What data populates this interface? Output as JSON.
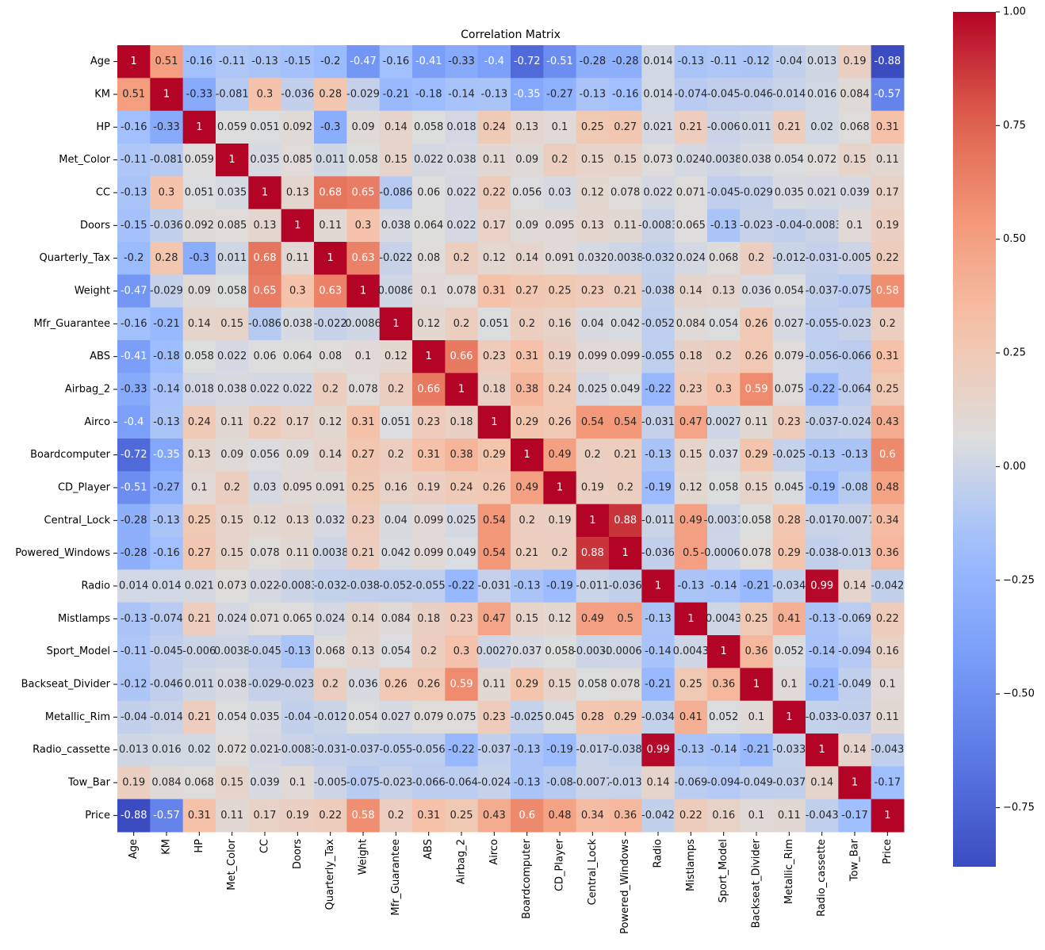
{
  "chart_data": {
    "type": "heatmap",
    "title": "Correlation Matrix",
    "colormap": "coolwarm",
    "categories": [
      "Age",
      "KM",
      "HP",
      "Met_Color",
      "CC",
      "Doors",
      "Quarterly_Tax",
      "Weight",
      "Mfr_Guarantee",
      "ABS",
      "Airbag_2",
      "Airco",
      "Boardcomputer",
      "CD_Player",
      "Central_Lock",
      "Powered_Windows",
      "Radio",
      "Mistlamps",
      "Sport_Model",
      "Backseat_Divider",
      "Metallic_Rim",
      "Radio_cassette",
      "Tow_Bar",
      "Price"
    ],
    "values": [
      [
        1,
        0.51,
        -0.16,
        -0.11,
        -0.13,
        -0.15,
        -0.2,
        -0.47,
        -0.16,
        -0.41,
        -0.33,
        -0.4,
        -0.72,
        -0.51,
        -0.28,
        -0.28,
        0.014,
        -0.13,
        -0.11,
        -0.12,
        -0.04,
        0.013,
        0.19,
        -0.88
      ],
      [
        0.51,
        1,
        -0.33,
        -0.081,
        0.3,
        -0.036,
        0.28,
        -0.029,
        -0.21,
        -0.18,
        -0.14,
        -0.13,
        -0.35,
        -0.27,
        -0.13,
        -0.16,
        0.014,
        -0.074,
        -0.045,
        -0.046,
        -0.014,
        0.016,
        0.084,
        -0.57
      ],
      [
        -0.16,
        -0.33,
        1,
        0.059,
        0.051,
        0.092,
        -0.3,
        0.09,
        0.14,
        0.058,
        0.018,
        0.24,
        0.13,
        0.1,
        0.25,
        0.27,
        0.021,
        0.21,
        -0.006,
        0.011,
        0.21,
        0.02,
        0.068,
        0.31
      ],
      [
        -0.11,
        -0.081,
        0.059,
        1,
        0.035,
        0.085,
        0.011,
        0.058,
        0.15,
        0.022,
        0.038,
        0.11,
        0.09,
        0.2,
        0.15,
        0.15,
        0.073,
        0.024,
        0.0038,
        0.038,
        0.054,
        0.072,
        0.15,
        0.11
      ],
      [
        -0.13,
        0.3,
        0.051,
        0.035,
        1,
        0.13,
        0.68,
        0.65,
        -0.086,
        0.06,
        0.022,
        0.22,
        0.056,
        0.03,
        0.12,
        0.078,
        0.022,
        0.071,
        -0.045,
        -0.029,
        0.035,
        0.021,
        0.039,
        0.17
      ],
      [
        -0.15,
        -0.036,
        0.092,
        0.085,
        0.13,
        1,
        0.11,
        0.3,
        0.038,
        0.064,
        0.022,
        0.17,
        0.09,
        0.095,
        0.13,
        0.11,
        -0.0083,
        0.065,
        -0.13,
        -0.023,
        -0.04,
        -0.0083,
        0.1,
        0.19
      ],
      [
        -0.2,
        0.28,
        -0.3,
        0.011,
        0.68,
        0.11,
        1,
        0.63,
        -0.022,
        0.08,
        0.2,
        0.12,
        0.14,
        0.091,
        0.032,
        0.0038,
        -0.032,
        0.024,
        0.068,
        0.2,
        -0.012,
        -0.031,
        -0.005,
        0.22
      ],
      [
        -0.47,
        -0.029,
        0.09,
        0.058,
        0.65,
        0.3,
        0.63,
        1,
        0.0086,
        0.1,
        0.078,
        0.31,
        0.27,
        0.25,
        0.23,
        0.21,
        -0.038,
        0.14,
        0.13,
        0.036,
        0.054,
        -0.037,
        -0.075,
        0.58
      ],
      [
        -0.16,
        -0.21,
        0.14,
        0.15,
        -0.086,
        0.038,
        -0.022,
        0.0086,
        1,
        0.12,
        0.2,
        0.051,
        0.2,
        0.16,
        0.04,
        0.042,
        -0.052,
        0.084,
        0.054,
        0.26,
        0.027,
        -0.055,
        -0.023,
        0.2
      ],
      [
        -0.41,
        -0.18,
        0.058,
        0.022,
        0.06,
        0.064,
        0.08,
        0.1,
        0.12,
        1,
        0.66,
        0.23,
        0.31,
        0.19,
        0.099,
        0.099,
        -0.055,
        0.18,
        0.2,
        0.26,
        0.079,
        -0.056,
        -0.066,
        0.31
      ],
      [
        -0.33,
        -0.14,
        0.018,
        0.038,
        0.022,
        0.022,
        0.2,
        0.078,
        0.2,
        0.66,
        1,
        0.18,
        0.38,
        0.24,
        0.025,
        0.049,
        -0.22,
        0.23,
        0.3,
        0.59,
        0.075,
        -0.22,
        -0.064,
        0.25
      ],
      [
        -0.4,
        -0.13,
        0.24,
        0.11,
        0.22,
        0.17,
        0.12,
        0.31,
        0.051,
        0.23,
        0.18,
        1,
        0.29,
        0.26,
        0.54,
        0.54,
        -0.031,
        0.47,
        0.0027,
        0.11,
        0.23,
        -0.037,
        -0.024,
        0.43
      ],
      [
        -0.72,
        -0.35,
        0.13,
        0.09,
        0.056,
        0.09,
        0.14,
        0.27,
        0.2,
        0.31,
        0.38,
        0.29,
        1,
        0.49,
        0.2,
        0.21,
        -0.13,
        0.15,
        0.037,
        0.29,
        -0.025,
        -0.13,
        -0.13,
        0.6
      ],
      [
        -0.51,
        -0.27,
        0.1,
        0.2,
        0.03,
        0.095,
        0.091,
        0.25,
        0.16,
        0.19,
        0.24,
        0.26,
        0.49,
        1,
        0.19,
        0.2,
        -0.19,
        0.12,
        0.058,
        0.15,
        0.045,
        -0.19,
        -0.08,
        0.48
      ],
      [
        -0.28,
        -0.13,
        0.25,
        0.15,
        0.12,
        0.13,
        0.032,
        0.23,
        0.04,
        0.099,
        0.025,
        0.54,
        0.2,
        0.19,
        1,
        0.88,
        -0.011,
        0.49,
        -0.0031,
        0.058,
        0.28,
        -0.017,
        -0.0077,
        0.34
      ],
      [
        -0.28,
        -0.16,
        0.27,
        0.15,
        0.078,
        0.11,
        0.0038,
        0.21,
        0.042,
        0.099,
        0.049,
        0.54,
        0.21,
        0.2,
        0.88,
        1,
        -0.036,
        0.5,
        -0.00065,
        0.078,
        0.29,
        -0.038,
        -0.013,
        0.36
      ],
      [
        0.014,
        0.014,
        0.021,
        0.073,
        0.022,
        -0.0083,
        -0.032,
        -0.038,
        -0.052,
        -0.055,
        -0.22,
        -0.031,
        -0.13,
        -0.19,
        -0.011,
        -0.036,
        1,
        -0.13,
        -0.14,
        -0.21,
        -0.034,
        0.99,
        0.14,
        -0.042
      ],
      [
        -0.13,
        -0.074,
        0.21,
        0.024,
        0.071,
        0.065,
        0.024,
        0.14,
        0.084,
        0.18,
        0.23,
        0.47,
        0.15,
        0.12,
        0.49,
        0.5,
        -0.13,
        1,
        0.0043,
        0.25,
        0.41,
        -0.13,
        -0.069,
        0.22
      ],
      [
        -0.11,
        -0.045,
        -0.006,
        0.0038,
        -0.045,
        -0.13,
        0.068,
        0.13,
        0.054,
        0.2,
        0.3,
        0.0027,
        0.037,
        0.058,
        -0.0031,
        -0.00065,
        -0.14,
        0.0043,
        1,
        0.36,
        0.052,
        -0.14,
        -0.094,
        0.16
      ],
      [
        -0.12,
        -0.046,
        0.011,
        0.038,
        -0.029,
        -0.023,
        0.2,
        0.036,
        0.26,
        0.26,
        0.59,
        0.11,
        0.29,
        0.15,
        0.058,
        0.078,
        -0.21,
        0.25,
        0.36,
        1,
        0.1,
        -0.21,
        -0.049,
        0.1
      ],
      [
        -0.04,
        -0.014,
        0.21,
        0.054,
        0.035,
        -0.04,
        -0.012,
        0.054,
        0.027,
        0.079,
        0.075,
        0.23,
        -0.025,
        0.045,
        0.28,
        0.29,
        -0.034,
        0.41,
        0.052,
        0.1,
        1,
        -0.033,
        -0.037,
        0.11
      ],
      [
        0.013,
        0.016,
        0.02,
        0.072,
        0.021,
        -0.0083,
        -0.031,
        -0.037,
        -0.055,
        -0.056,
        -0.22,
        -0.037,
        -0.13,
        -0.19,
        -0.017,
        -0.038,
        0.99,
        -0.13,
        -0.14,
        -0.21,
        -0.033,
        1,
        0.14,
        -0.043
      ],
      [
        0.19,
        0.084,
        0.068,
        0.15,
        0.039,
        0.1,
        -0.005,
        -0.075,
        -0.023,
        -0.066,
        -0.064,
        -0.024,
        -0.13,
        -0.08,
        -0.0077,
        -0.013,
        0.14,
        -0.069,
        -0.094,
        -0.049,
        -0.037,
        0.14,
        1,
        -0.17
      ],
      [
        -0.88,
        -0.57,
        0.31,
        0.11,
        0.17,
        0.19,
        0.22,
        0.58,
        0.2,
        0.31,
        0.25,
        0.43,
        0.6,
        0.48,
        0.34,
        0.36,
        -0.042,
        0.22,
        0.16,
        0.1,
        0.11,
        -0.043,
        -0.17,
        1
      ]
    ],
    "zlim": [
      -0.88,
      1
    ],
    "zticks": [
      {
        "value": -0.75,
        "label": "−0.75"
      },
      {
        "value": -0.5,
        "label": "−0.50"
      },
      {
        "value": -0.25,
        "label": "−0.25"
      },
      {
        "value": 0,
        "label": "0.00"
      },
      {
        "value": 0.25,
        "label": "0.25"
      },
      {
        "value": 0.5,
        "label": "0.50"
      },
      {
        "value": 0.75,
        "label": "0.75"
      },
      {
        "value": 1,
        "label": "1.00"
      }
    ]
  }
}
